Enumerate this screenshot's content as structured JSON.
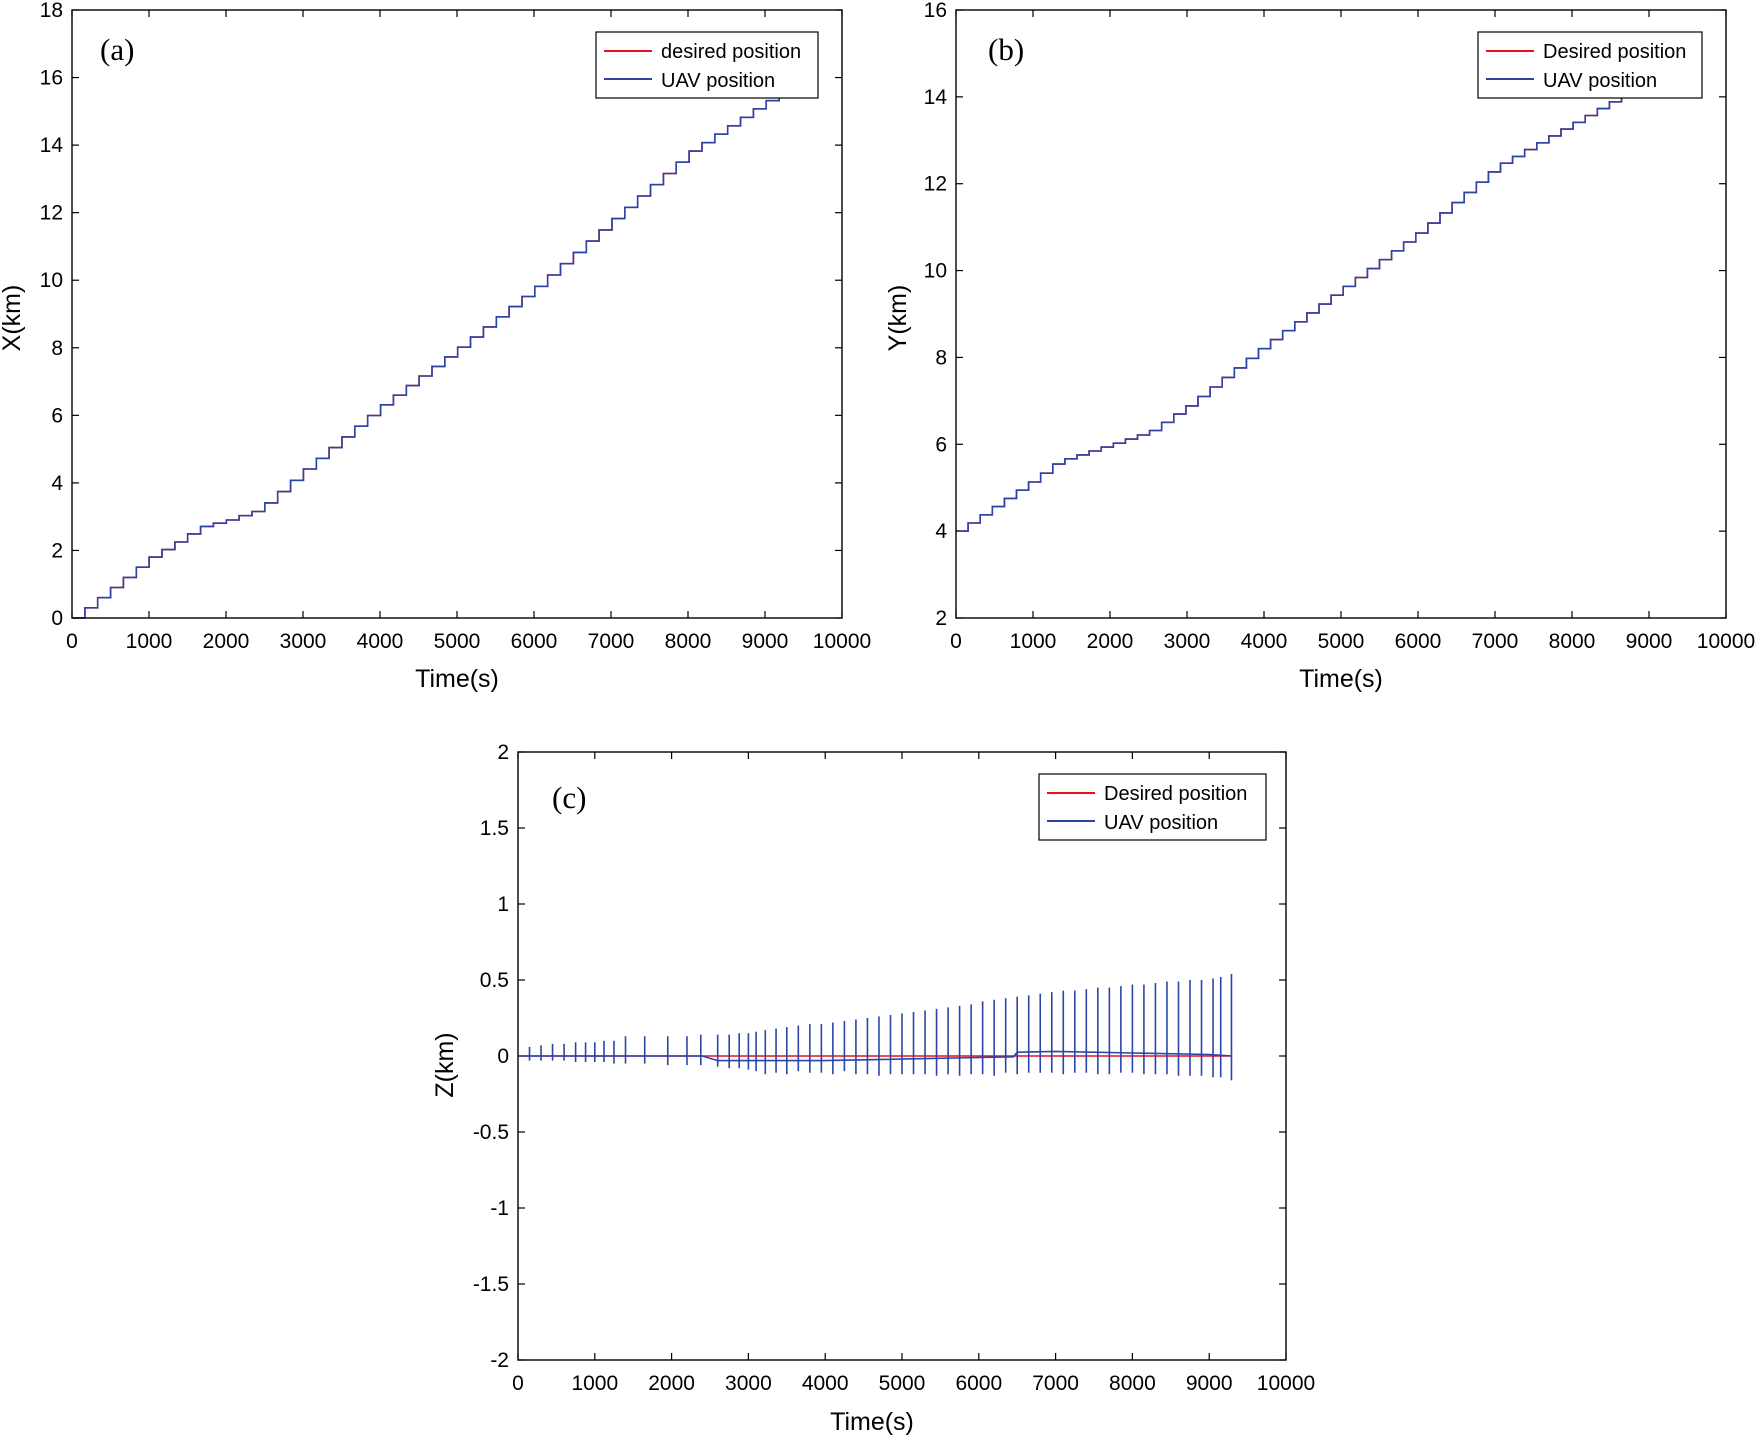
{
  "colors": {
    "desired": "#e8101c",
    "uav": "#2c44a8",
    "axis": "#000000"
  },
  "chart_data": [
    {
      "type": "line",
      "panel_label": "(a)",
      "xlabel": "Time(s)",
      "ylabel": "X(km)",
      "xlim": [
        0,
        10000
      ],
      "ylim": [
        0,
        18
      ],
      "xticks": [
        0,
        1000,
        2000,
        3000,
        4000,
        5000,
        6000,
        7000,
        8000,
        9000,
        10000
      ],
      "yticks": [
        0,
        2,
        4,
        6,
        8,
        10,
        12,
        14,
        16,
        18
      ],
      "legend": {
        "position": "top-right",
        "entries": [
          "desired position",
          "UAV position"
        ]
      },
      "series": [
        {
          "name": "desired position",
          "color": "#e8101c",
          "shape": "staircase",
          "x": [
            0,
            1000,
            1300,
            1650,
            2000,
            2400,
            3000,
            4000,
            5000,
            6000,
            7000,
            8000,
            9000,
            9350
          ],
          "y": [
            0,
            1.8,
            2.2,
            2.7,
            2.9,
            3.2,
            4.4,
            6.3,
            8.0,
            9.8,
            11.8,
            13.8,
            15.3,
            15.6
          ]
        },
        {
          "name": "UAV position",
          "color": "#2c44a8",
          "shape": "staircase",
          "x": [
            0,
            1000,
            1300,
            1650,
            2000,
            2400,
            3000,
            4000,
            5000,
            6000,
            7000,
            8000,
            9000,
            9350
          ],
          "y": [
            0,
            1.8,
            2.2,
            2.7,
            2.9,
            3.2,
            4.4,
            6.3,
            8.0,
            9.8,
            11.8,
            13.8,
            15.3,
            15.6
          ]
        }
      ]
    },
    {
      "type": "line",
      "panel_label": "(b)",
      "xlabel": "Time(s)",
      "ylabel": "Y(km)",
      "xlim": [
        0,
        10000
      ],
      "ylim": [
        2,
        16
      ],
      "xticks": [
        0,
        1000,
        2000,
        3000,
        4000,
        5000,
        6000,
        7000,
        8000,
        9000,
        10000
      ],
      "yticks": [
        2,
        4,
        6,
        8,
        10,
        12,
        14,
        16
      ],
      "legend": {
        "position": "top-right",
        "entries": [
          "Desired position",
          "UAV position"
        ]
      },
      "series": [
        {
          "name": "Desired position",
          "color": "#e8101c",
          "shape": "staircase",
          "x": [
            0,
            1000,
            1300,
            1650,
            2000,
            2500,
            3000,
            4000,
            5000,
            6000,
            7000,
            8000,
            8500,
            8800
          ],
          "y": [
            4.0,
            5.2,
            5.6,
            5.8,
            6.0,
            6.3,
            6.9,
            8.3,
            9.6,
            10.9,
            12.4,
            13.4,
            13.9,
            14.3
          ]
        },
        {
          "name": "UAV position",
          "color": "#2c44a8",
          "shape": "staircase",
          "x": [
            0,
            1000,
            1300,
            1650,
            2000,
            2500,
            3000,
            4000,
            5000,
            6000,
            7000,
            8000,
            8500,
            8800
          ],
          "y": [
            4.0,
            5.2,
            5.6,
            5.8,
            6.0,
            6.3,
            6.9,
            8.3,
            9.6,
            10.9,
            12.4,
            13.4,
            13.9,
            14.3
          ]
        }
      ]
    },
    {
      "type": "line",
      "panel_label": "(c)",
      "xlabel": "Time(s)",
      "ylabel": "Z(km)",
      "xlim": [
        0,
        10000
      ],
      "ylim": [
        -2,
        2
      ],
      "xticks": [
        0,
        1000,
        2000,
        3000,
        4000,
        5000,
        6000,
        7000,
        8000,
        9000,
        10000
      ],
      "yticks": [
        -2,
        -1.5,
        -1,
        -0.5,
        0,
        0.5,
        1,
        1.5,
        2
      ],
      "legend": {
        "position": "top-right",
        "entries": [
          "Desired position",
          "UAV position"
        ]
      },
      "series": [
        {
          "name": "Desired position",
          "color": "#e8101c",
          "x": [
            0,
            9300
          ],
          "y": [
            0,
            0
          ]
        },
        {
          "name": "UAV position",
          "color": "#2c44a8",
          "x": [
            0,
            2400,
            2600,
            4000,
            6000,
            6450,
            6500,
            7000,
            8000,
            9000,
            9300
          ],
          "y": [
            0,
            0,
            -0.03,
            -0.03,
            -0.01,
            -0.005,
            0.025,
            0.03,
            0.02,
            0.01,
            0.0
          ]
        },
        {
          "name": "UAV position spikes",
          "color": "#2c44a8",
          "spike_times": [
            150,
            300,
            450,
            600,
            750,
            880,
            1000,
            1120,
            1250,
            1400,
            1650,
            1950,
            2200,
            2380,
            2600,
            2750,
            2880,
            3000,
            3100,
            3220,
            3360,
            3500,
            3650,
            3800,
            3950,
            4100,
            4250,
            4400,
            4550,
            4700,
            4850,
            5000,
            5150,
            5300,
            5450,
            5600,
            5750,
            5900,
            6050,
            6200,
            6350,
            6500,
            6650,
            6800,
            6950,
            7100,
            7250,
            7400,
            7550,
            7700,
            7850,
            8000,
            8150,
            8300,
            8450,
            8600,
            8750,
            8900,
            9050,
            9150,
            9290
          ],
          "spike_max": [
            0.06,
            0.07,
            0.08,
            0.08,
            0.09,
            0.09,
            0.09,
            0.1,
            0.1,
            0.13,
            0.13,
            0.13,
            0.13,
            0.14,
            0.14,
            0.14,
            0.15,
            0.15,
            0.16,
            0.17,
            0.18,
            0.19,
            0.2,
            0.21,
            0.21,
            0.22,
            0.23,
            0.24,
            0.25,
            0.26,
            0.27,
            0.28,
            0.29,
            0.3,
            0.31,
            0.32,
            0.33,
            0.34,
            0.36,
            0.37,
            0.38,
            0.39,
            0.4,
            0.41,
            0.42,
            0.43,
            0.43,
            0.44,
            0.45,
            0.45,
            0.46,
            0.47,
            0.47,
            0.48,
            0.49,
            0.49,
            0.5,
            0.5,
            0.51,
            0.52,
            0.54
          ],
          "spike_min": [
            -0.03,
            -0.03,
            -0.03,
            -0.03,
            -0.04,
            -0.04,
            -0.04,
            -0.04,
            -0.05,
            -0.05,
            -0.05,
            -0.06,
            -0.06,
            -0.06,
            -0.07,
            -0.08,
            -0.08,
            -0.09,
            -0.1,
            -0.12,
            -0.11,
            -0.12,
            -0.1,
            -0.11,
            -0.11,
            -0.12,
            -0.1,
            -0.12,
            -0.12,
            -0.13,
            -0.12,
            -0.12,
            -0.12,
            -0.12,
            -0.13,
            -0.12,
            -0.13,
            -0.12,
            -0.12,
            -0.13,
            -0.11,
            -0.12,
            -0.11,
            -0.11,
            -0.11,
            -0.12,
            -0.11,
            -0.11,
            -0.12,
            -0.12,
            -0.11,
            -0.11,
            -0.12,
            -0.12,
            -0.12,
            -0.13,
            -0.13,
            -0.13,
            -0.14,
            -0.14,
            -0.16
          ]
        }
      ]
    }
  ]
}
